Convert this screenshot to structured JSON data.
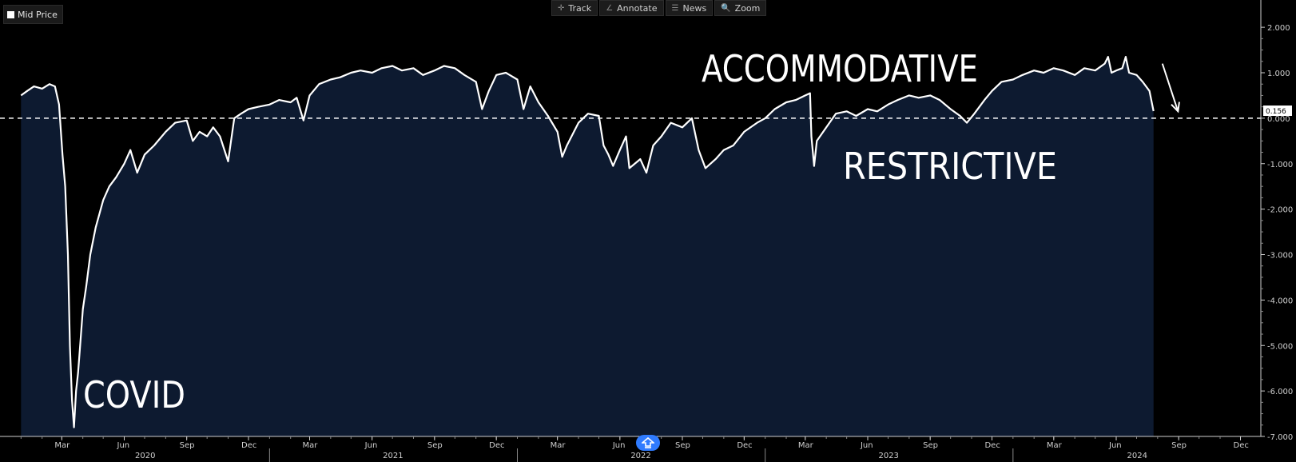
{
  "legend": {
    "label": "Mid Price",
    "swatch_color": "#ffffff"
  },
  "toolbar": [
    {
      "label": "Track",
      "icon": "crosshair-icon",
      "glyph": "✛"
    },
    {
      "label": "Annotate",
      "icon": "pencil-icon",
      "glyph": "∠"
    },
    {
      "label": "News",
      "icon": "news-icon",
      "glyph": "☰"
    },
    {
      "label": "Zoom",
      "icon": "zoom-icon",
      "glyph": "🔍"
    }
  ],
  "nav_button": {
    "icon": "home-arrow-icon"
  },
  "colors": {
    "fill": "#0d1a30",
    "line": "#ffffff",
    "background": "#000000",
    "axis_text": "#d0d0d0"
  },
  "chart_data": {
    "type": "area",
    "series": [
      {
        "points": [
          [
            "2020-01-01",
            0.5
          ],
          [
            "2020-01-10",
            0.6
          ],
          [
            "2020-01-20",
            0.7
          ],
          [
            "2020-02-01",
            0.65
          ],
          [
            "2020-02-12",
            0.75
          ],
          [
            "2020-02-20",
            0.7
          ],
          [
            "2020-02-26",
            0.3
          ],
          [
            "2020-03-02",
            -0.8
          ],
          [
            "2020-03-06",
            -1.5
          ],
          [
            "2020-03-10",
            -3.0
          ],
          [
            "2020-03-13",
            -5.0
          ],
          [
            "2020-03-16",
            -6.2
          ],
          [
            "2020-03-19",
            -6.8
          ],
          [
            "2020-03-22",
            -6.0
          ],
          [
            "2020-03-25",
            -5.6
          ],
          [
            "2020-03-28",
            -5.0
          ],
          [
            "2020-04-01",
            -4.2
          ],
          [
            "2020-04-06",
            -3.7
          ],
          [
            "2020-04-12",
            -3.0
          ],
          [
            "2020-04-20",
            -2.4
          ],
          [
            "2020-05-01",
            -1.8
          ],
          [
            "2020-05-10",
            -1.5
          ],
          [
            "2020-05-20",
            -1.3
          ],
          [
            "2020-06-01",
            -1.0
          ],
          [
            "2020-06-10",
            -0.7
          ],
          [
            "2020-06-20",
            -1.2
          ],
          [
            "2020-07-01",
            -0.8
          ],
          [
            "2020-07-15",
            -0.6
          ],
          [
            "2020-08-01",
            -0.3
          ],
          [
            "2020-08-15",
            -0.1
          ],
          [
            "2020-09-01",
            -0.05
          ],
          [
            "2020-09-10",
            -0.5
          ],
          [
            "2020-09-20",
            -0.3
          ],
          [
            "2020-10-01",
            -0.4
          ],
          [
            "2020-10-10",
            -0.2
          ],
          [
            "2020-10-20",
            -0.4
          ],
          [
            "2020-11-01",
            -0.95
          ],
          [
            "2020-11-10",
            0.0
          ],
          [
            "2020-11-20",
            0.1
          ],
          [
            "2020-12-01",
            0.2
          ],
          [
            "2020-12-15",
            0.25
          ],
          [
            "2021-01-01",
            0.3
          ],
          [
            "2021-01-15",
            0.4
          ],
          [
            "2021-02-01",
            0.35
          ],
          [
            "2021-02-10",
            0.45
          ],
          [
            "2021-02-20",
            -0.05
          ],
          [
            "2021-03-01",
            0.5
          ],
          [
            "2021-03-15",
            0.75
          ],
          [
            "2021-04-01",
            0.85
          ],
          [
            "2021-04-15",
            0.9
          ],
          [
            "2021-05-01",
            1.0
          ],
          [
            "2021-05-15",
            1.05
          ],
          [
            "2021-06-01",
            1.0
          ],
          [
            "2021-06-15",
            1.1
          ],
          [
            "2021-07-01",
            1.15
          ],
          [
            "2021-07-15",
            1.05
          ],
          [
            "2021-08-01",
            1.1
          ],
          [
            "2021-08-15",
            0.95
          ],
          [
            "2021-09-01",
            1.05
          ],
          [
            "2021-09-15",
            1.15
          ],
          [
            "2021-10-01",
            1.1
          ],
          [
            "2021-10-15",
            0.95
          ],
          [
            "2021-11-01",
            0.8
          ],
          [
            "2021-11-10",
            0.2
          ],
          [
            "2021-11-20",
            0.6
          ],
          [
            "2021-12-01",
            0.95
          ],
          [
            "2021-12-15",
            1.0
          ],
          [
            "2022-01-01",
            0.85
          ],
          [
            "2022-01-10",
            0.2
          ],
          [
            "2022-01-20",
            0.7
          ],
          [
            "2022-02-01",
            0.35
          ],
          [
            "2022-02-15",
            0.05
          ],
          [
            "2022-03-01",
            -0.3
          ],
          [
            "2022-03-08",
            -0.85
          ],
          [
            "2022-03-15",
            -0.6
          ],
          [
            "2022-04-01",
            -0.1
          ],
          [
            "2022-04-15",
            0.1
          ],
          [
            "2022-05-01",
            0.05
          ],
          [
            "2022-05-08",
            -0.6
          ],
          [
            "2022-05-15",
            -0.8
          ],
          [
            "2022-05-22",
            -1.05
          ],
          [
            "2022-06-01",
            -0.7
          ],
          [
            "2022-06-10",
            -0.4
          ],
          [
            "2022-06-15",
            -1.1
          ],
          [
            "2022-07-01",
            -0.9
          ],
          [
            "2022-07-10",
            -1.2
          ],
          [
            "2022-07-20",
            -0.6
          ],
          [
            "2022-08-01",
            -0.4
          ],
          [
            "2022-08-15",
            -0.1
          ],
          [
            "2022-09-01",
            -0.2
          ],
          [
            "2022-09-15",
            0.0
          ],
          [
            "2022-09-25",
            -0.7
          ],
          [
            "2022-10-05",
            -1.1
          ],
          [
            "2022-10-20",
            -0.9
          ],
          [
            "2022-11-01",
            -0.7
          ],
          [
            "2022-11-15",
            -0.6
          ],
          [
            "2022-12-01",
            -0.3
          ],
          [
            "2022-12-20",
            -0.1
          ],
          [
            "2023-01-01",
            0.0
          ],
          [
            "2023-01-15",
            0.2
          ],
          [
            "2023-02-01",
            0.35
          ],
          [
            "2023-02-15",
            0.4
          ],
          [
            "2023-03-01",
            0.5
          ],
          [
            "2023-03-08",
            0.55
          ],
          [
            "2023-03-10",
            -0.4
          ],
          [
            "2023-03-14",
            -1.05
          ],
          [
            "2023-03-18",
            -0.5
          ],
          [
            "2023-04-01",
            -0.2
          ],
          [
            "2023-04-15",
            0.1
          ],
          [
            "2023-05-01",
            0.15
          ],
          [
            "2023-05-15",
            0.05
          ],
          [
            "2023-06-01",
            0.2
          ],
          [
            "2023-06-15",
            0.15
          ],
          [
            "2023-07-01",
            0.3
          ],
          [
            "2023-07-15",
            0.4
          ],
          [
            "2023-08-01",
            0.5
          ],
          [
            "2023-08-15",
            0.45
          ],
          [
            "2023-09-01",
            0.5
          ],
          [
            "2023-09-15",
            0.4
          ],
          [
            "2023-10-01",
            0.2
          ],
          [
            "2023-10-15",
            0.05
          ],
          [
            "2023-10-25",
            -0.1
          ],
          [
            "2023-11-05",
            0.1
          ],
          [
            "2023-11-20",
            0.4
          ],
          [
            "2023-12-01",
            0.6
          ],
          [
            "2023-12-15",
            0.8
          ],
          [
            "2024-01-01",
            0.85
          ],
          [
            "2024-01-15",
            0.95
          ],
          [
            "2024-02-01",
            1.05
          ],
          [
            "2024-02-15",
            1.0
          ],
          [
            "2024-03-01",
            1.1
          ],
          [
            "2024-03-15",
            1.05
          ],
          [
            "2024-04-01",
            0.95
          ],
          [
            "2024-04-15",
            1.1
          ],
          [
            "2024-05-01",
            1.05
          ],
          [
            "2024-05-15",
            1.2
          ],
          [
            "2024-05-20",
            1.35
          ],
          [
            "2024-05-25",
            1.0
          ],
          [
            "2024-06-01",
            1.05
          ],
          [
            "2024-06-10",
            1.1
          ],
          [
            "2024-06-15",
            1.35
          ],
          [
            "2024-06-20",
            1.0
          ],
          [
            "2024-07-01",
            0.95
          ],
          [
            "2024-07-10",
            0.8
          ],
          [
            "2024-07-20",
            0.6
          ],
          [
            "2024-07-26",
            0.156
          ]
        ]
      }
    ],
    "last_value_label": "0.156",
    "reference_line": {
      "y": 0,
      "style": "dashed"
    },
    "annotations": [
      {
        "text": "COVID"
      },
      {
        "text": "ACCOMMODATIVE"
      },
      {
        "text": "RESTRICTIVE"
      }
    ],
    "arrow": {
      "from": [
        "2024-08-08",
        1.2
      ],
      "to": [
        "2024-08-31",
        0.15
      ]
    },
    "x_range": [
      "2019-12-01",
      "2024-12-31"
    ],
    "ylim": [
      -7.0,
      2.6
    ],
    "y_ticks": [
      2,
      1,
      0,
      -1,
      -2,
      -3,
      -4,
      -5,
      -6,
      -7
    ],
    "y_tick_labels": [
      "2.000",
      "1.000",
      "0.000",
      "-1.000",
      "-2.000",
      "-3.000",
      "-4.000",
      "-5.000",
      "-6.000",
      "-7.000"
    ],
    "x_month_ticks": [
      [
        "2020-03-01",
        "Mar"
      ],
      [
        "2020-06-01",
        "Jun"
      ],
      [
        "2020-09-01",
        "Sep"
      ],
      [
        "2020-12-01",
        "Dec"
      ],
      [
        "2021-03-01",
        "Mar"
      ],
      [
        "2021-06-01",
        "Jun"
      ],
      [
        "2021-09-01",
        "Sep"
      ],
      [
        "2021-12-01",
        "Dec"
      ],
      [
        "2022-03-01",
        "Mar"
      ],
      [
        "2022-06-01",
        "Jun"
      ],
      [
        "2022-09-01",
        "Sep"
      ],
      [
        "2022-12-01",
        "Dec"
      ],
      [
        "2023-03-01",
        "Mar"
      ],
      [
        "2023-06-01",
        "Jun"
      ],
      [
        "2023-09-01",
        "Sep"
      ],
      [
        "2023-12-01",
        "Dec"
      ],
      [
        "2024-03-01",
        "Mar"
      ],
      [
        "2024-06-01",
        "Jun"
      ],
      [
        "2024-09-01",
        "Sep"
      ],
      [
        "2024-12-01",
        "Dec"
      ]
    ],
    "x_year_ticks": [
      [
        "2020-07-01",
        "2020"
      ],
      [
        "2021-07-01",
        "2021"
      ],
      [
        "2022-07-01",
        "2022"
      ],
      [
        "2023-07-01",
        "2023"
      ],
      [
        "2024-07-01",
        "2024"
      ]
    ],
    "grid": false
  }
}
